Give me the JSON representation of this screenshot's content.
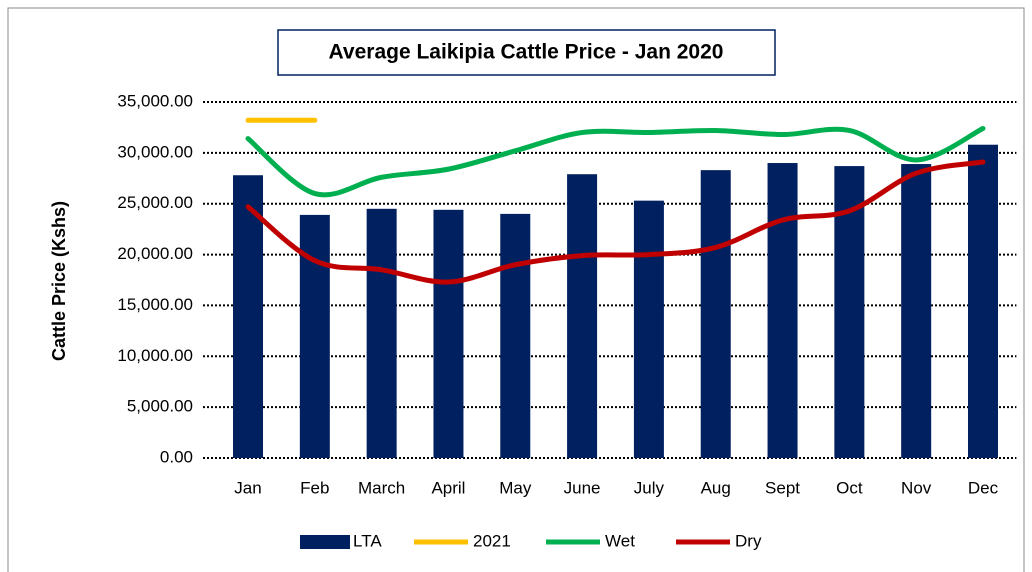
{
  "chart_data": {
    "type": "bar",
    "title": "Average Laikipia Cattle Price -  Jan 2020",
    "y_label": "Cattle Price (Kshs)",
    "categories": [
      "Jan",
      "Feb",
      "March",
      "April",
      "May",
      "June",
      "July",
      "Aug",
      "Sept",
      "Oct",
      "Nov",
      "Dec"
    ],
    "series": [
      {
        "name": "LTA",
        "type": "bar",
        "color": "#002060",
        "values": [
          27800,
          23900,
          24500,
          24400,
          24000,
          27900,
          25300,
          28300,
          29000,
          28700,
          28900,
          30800
        ]
      },
      {
        "name": "2021",
        "type": "line",
        "color": "#ffc000",
        "values": [
          33200,
          33200,
          null,
          null,
          null,
          null,
          null,
          null,
          null,
          null,
          null,
          null
        ]
      },
      {
        "name": "Wet",
        "type": "line",
        "color": "#00b050",
        "values": [
          31400,
          26000,
          27600,
          28400,
          30200,
          32000,
          32000,
          32200,
          31800,
          32200,
          29300,
          32400
        ]
      },
      {
        "name": "Dry",
        "type": "line",
        "color": "#c00000",
        "values": [
          24700,
          19400,
          18500,
          17300,
          19000,
          19900,
          20000,
          20700,
          23400,
          24300,
          28000,
          29100
        ]
      }
    ],
    "ylim": [
      0,
      35000
    ],
    "yticks": [
      {
        "value": 0,
        "label": "0.00"
      },
      {
        "value": 5000,
        "label": "5,000.00"
      },
      {
        "value": 10000,
        "label": "10,000.00"
      },
      {
        "value": 15000,
        "label": "15,000.00"
      },
      {
        "value": 20000,
        "label": "20,000.00"
      },
      {
        "value": 25000,
        "label": "25,000.00"
      },
      {
        "value": 30000,
        "label": "30,000.00"
      },
      {
        "value": 35000,
        "label": "35,000.00"
      }
    ],
    "grid": true,
    "legend": "bottom"
  }
}
